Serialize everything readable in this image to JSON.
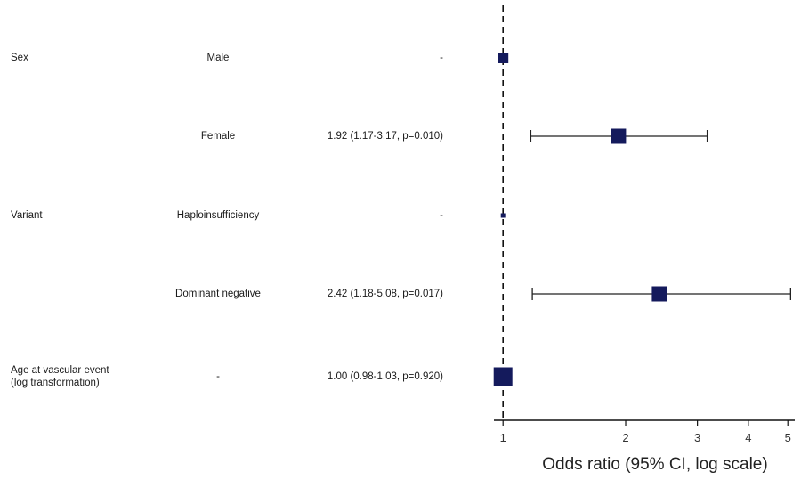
{
  "chart_data": {
    "type": "forest",
    "rows": [
      {
        "variable": "Sex",
        "level": "Male",
        "estimate_text": "-",
        "or": 1.0,
        "ci": null,
        "marker": "small"
      },
      {
        "variable": "",
        "level": "Female",
        "estimate_text": "1.92 (1.17-3.17, p=0.010)",
        "or": 1.92,
        "ci": [
          1.17,
          3.17
        ],
        "marker": "medium"
      },
      {
        "variable": "Variant",
        "level": "Haploinsufficiency",
        "estimate_text": "-",
        "or": 1.0,
        "ci": null,
        "marker": "dot"
      },
      {
        "variable": "",
        "level": "Dominant negative",
        "estimate_text": "2.42 (1.18-5.08, p=0.017)",
        "or": 2.42,
        "ci": [
          1.18,
          5.08
        ],
        "marker": "medium"
      },
      {
        "variable": "Age at vascular event\n(log transformation)",
        "level": "-",
        "estimate_text": "1.00 (0.98-1.03, p=0.920)",
        "or": 1.0,
        "ci": [
          0.98,
          1.03
        ],
        "marker": "large"
      }
    ],
    "x_ticks": [
      1,
      2,
      3,
      4,
      5
    ],
    "xlabel": "Odds ratio (95% CI, log scale)",
    "x_scale": "log",
    "xlim": [
      0.95,
      5.2
    ],
    "reference_line": 1,
    "marker_color": "#141a5c"
  }
}
